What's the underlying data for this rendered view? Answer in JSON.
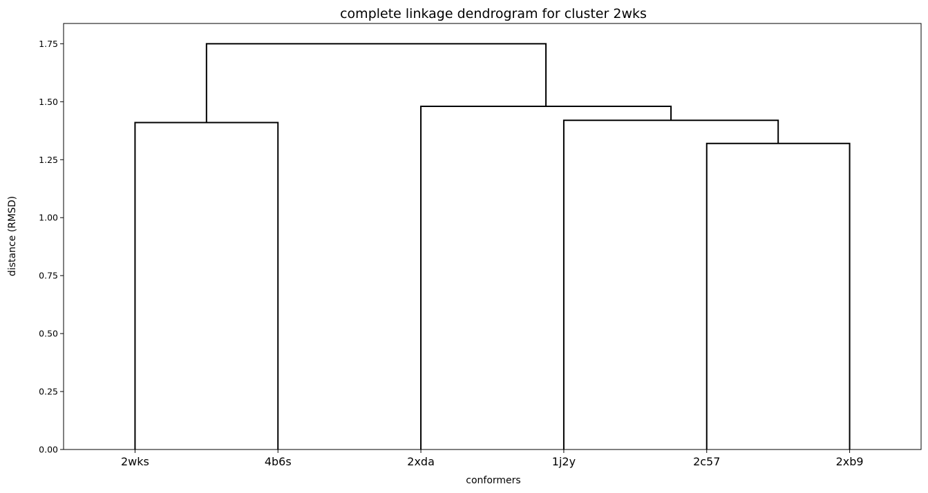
{
  "chart_data": {
    "type": "dendrogram",
    "title": "complete linkage dendrogram for cluster 2wks",
    "xlabel": "conformers",
    "ylabel": "distance (RMSD)",
    "leaves": [
      "2wks",
      "4b6s",
      "2xda",
      "1j2y",
      "2c57",
      "2xb9"
    ],
    "yticks": [
      0.0,
      0.25,
      0.5,
      0.75,
      1.0,
      1.25,
      1.5,
      1.75
    ],
    "ytick_labels": [
      "0.00",
      "0.25",
      "0.50",
      "0.75",
      "1.00",
      "1.25",
      "1.50",
      "1.75"
    ],
    "ylim": [
      0,
      1.8375
    ],
    "grid": false,
    "links": [
      {
        "id": "merge-2wks-4b6s",
        "height": 1.41,
        "left": "2wks",
        "right": "4b6s"
      },
      {
        "id": "merge-2c57-2xb9",
        "height": 1.32,
        "left": "2c57",
        "right": "2xb9"
      },
      {
        "id": "merge-1j2y-cluster",
        "height": 1.42,
        "left": "1j2y",
        "right": "merge-2c57-2xb9"
      },
      {
        "id": "merge-2xda-cluster",
        "height": 1.48,
        "left": "2xda",
        "right": "merge-1j2y-cluster"
      },
      {
        "id": "merge-root",
        "height": 1.75,
        "left": "merge-2wks-4b6s",
        "right": "merge-2xda-cluster"
      }
    ]
  }
}
